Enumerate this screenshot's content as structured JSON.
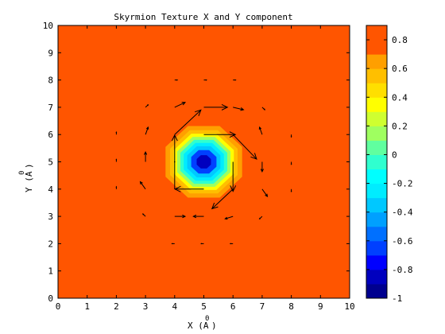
{
  "chart_data": {
    "type": "heatmap",
    "title": "Skyrmion Texture X and Y component",
    "xlabel": "X (A",
    "xlabel_sup": "0",
    "xlabel_end": ")",
    "ylabel": "Y (A",
    "ylabel_sup": "0",
    "ylabel_end": ")",
    "xlim": [
      0,
      10
    ],
    "ylim": [
      0,
      10
    ],
    "xticks": [
      "0",
      "1",
      "2",
      "3",
      "4",
      "5",
      "6",
      "7",
      "8",
      "9",
      "10"
    ],
    "yticks": [
      "0",
      "1",
      "2",
      "3",
      "4",
      "5",
      "6",
      "7",
      "8",
      "9",
      "10"
    ],
    "center": [
      5,
      5
    ],
    "radius": 1.8,
    "clim": [
      -1,
      0.9
    ],
    "colorbar_ticks": [
      "0.8",
      "0.6",
      "0.4",
      "0.2",
      "0",
      "-0.2",
      "-0.4",
      "-0.6",
      "-0.8",
      "-1"
    ],
    "colorbar_tick_values": [
      0.8,
      0.6,
      0.4,
      0.2,
      0,
      -0.2,
      -0.4,
      -0.6,
      -0.8,
      -1
    ],
    "colorbar_levels": [
      {
        "from": -1.0,
        "to": -0.9,
        "color": "#00008f"
      },
      {
        "from": -0.9,
        "to": -0.8,
        "color": "#0000bf"
      },
      {
        "from": -0.8,
        "to": -0.7,
        "color": "#0000ff"
      },
      {
        "from": -0.7,
        "to": -0.6,
        "color": "#0040ff"
      },
      {
        "from": -0.6,
        "to": -0.5,
        "color": "#0070ff"
      },
      {
        "from": -0.5,
        "to": -0.4,
        "color": "#00a0ff"
      },
      {
        "from": -0.4,
        "to": -0.3,
        "color": "#00c8ff"
      },
      {
        "from": -0.3,
        "to": -0.2,
        "color": "#00ecff"
      },
      {
        "from": -0.2,
        "to": -0.1,
        "color": "#00ffff"
      },
      {
        "from": -0.1,
        "to": 0.0,
        "color": "#30ffcf"
      },
      {
        "from": 0.0,
        "to": 0.1,
        "color": "#60ff9f"
      },
      {
        "from": 0.1,
        "to": 0.2,
        "color": "#9fff60"
      },
      {
        "from": 0.2,
        "to": 0.3,
        "color": "#cfff30"
      },
      {
        "from": 0.3,
        "to": 0.4,
        "color": "#ffff00"
      },
      {
        "from": 0.4,
        "to": 0.5,
        "color": "#ffdf00"
      },
      {
        "from": 0.5,
        "to": 0.6,
        "color": "#ffbf00"
      },
      {
        "from": 0.6,
        "to": 0.7,
        "color": "#ff9f00"
      },
      {
        "from": 0.7,
        "to": 0.9,
        "color": "#ff5500"
      }
    ],
    "contour_levels": [
      {
        "value": 0.7,
        "color": "#ff9f00"
      },
      {
        "value": 0.5,
        "color": "#ffbf00"
      },
      {
        "value": 0.3,
        "color": "#ffff00"
      },
      {
        "value": 0.1,
        "color": "#9fff60"
      },
      {
        "value": -0.1,
        "color": "#30ffcf"
      },
      {
        "value": -0.3,
        "color": "#00ecff"
      },
      {
        "value": -0.5,
        "color": "#00c8ff"
      },
      {
        "value": -0.7,
        "color": "#0040ff"
      },
      {
        "value": -0.9,
        "color": "#0000bf"
      }
    ],
    "arrows": [
      {
        "x": 4,
        "y": 4,
        "u": 0,
        "v": 2.2
      },
      {
        "x": 4,
        "y": 6,
        "u": 1.0,
        "v": 1.0
      },
      {
        "x": 5,
        "y": 7,
        "u": 0.9,
        "v": 0.0
      },
      {
        "x": 5,
        "y": 6,
        "u": 1.2,
        "v": 0.0
      },
      {
        "x": 6,
        "y": 6,
        "u": 0.9,
        "v": -1.0
      },
      {
        "x": 6,
        "y": 5,
        "u": 0.0,
        "v": -1.2
      },
      {
        "x": 6,
        "y": 4,
        "u": -0.8,
        "v": -0.8
      },
      {
        "x": 5,
        "y": 4,
        "u": -1.1,
        "v": 0.0
      },
      {
        "x": 4,
        "y": 5,
        "u": 0.0,
        "v": 0.0
      },
      {
        "x": 3,
        "y": 5,
        "u": 0.0,
        "v": 0.4
      },
      {
        "x": 3,
        "y": 4,
        "u": -0.2,
        "v": 0.3
      },
      {
        "x": 4,
        "y": 3,
        "u": 0.4,
        "v": 0.0
      },
      {
        "x": 5,
        "y": 3,
        "u": -0.4,
        "v": 0.0
      },
      {
        "x": 6,
        "y": 3,
        "u": -0.3,
        "v": -0.1
      },
      {
        "x": 7,
        "y": 4,
        "u": 0.2,
        "v": -0.3
      },
      {
        "x": 7,
        "y": 5,
        "u": 0.0,
        "v": -0.4
      },
      {
        "x": 7,
        "y": 6,
        "u": -0.1,
        "v": 0.3
      },
      {
        "x": 6,
        "y": 7,
        "u": 0.4,
        "v": -0.1
      },
      {
        "x": 4,
        "y": 7,
        "u": 0.4,
        "v": 0.2
      },
      {
        "x": 3,
        "y": 6,
        "u": 0.1,
        "v": 0.3
      },
      {
        "x": 3,
        "y": 7,
        "u": 0.1,
        "v": 0.1
      },
      {
        "x": 7,
        "y": 3,
        "u": -0.1,
        "v": -0.1
      },
      {
        "x": 3,
        "y": 3,
        "u": -0.1,
        "v": 0.1
      },
      {
        "x": 7,
        "y": 7,
        "u": 0.1,
        "v": -0.1
      },
      {
        "x": 2,
        "y": 5,
        "u": 0.0,
        "v": 0.1
      },
      {
        "x": 2,
        "y": 6,
        "u": 0.0,
        "v": 0.1
      },
      {
        "x": 2,
        "y": 4,
        "u": 0.0,
        "v": 0.1
      },
      {
        "x": 8,
        "y": 4,
        "u": 0.0,
        "v": -0.1
      },
      {
        "x": 8,
        "y": 5,
        "u": 0.0,
        "v": -0.1
      },
      {
        "x": 8,
        "y": 6,
        "u": 0.0,
        "v": -0.1
      },
      {
        "x": 4,
        "y": 8,
        "u": 0.1,
        "v": 0.0
      },
      {
        "x": 5,
        "y": 8,
        "u": 0.1,
        "v": 0.0
      },
      {
        "x": 6,
        "y": 8,
        "u": 0.1,
        "v": 0.0
      },
      {
        "x": 4,
        "y": 2,
        "u": -0.1,
        "v": 0.0
      },
      {
        "x": 5,
        "y": 2,
        "u": -0.1,
        "v": 0.0
      },
      {
        "x": 6,
        "y": 2,
        "u": -0.1,
        "v": 0.0
      }
    ],
    "background_color": "#ff5500",
    "grid": false
  }
}
